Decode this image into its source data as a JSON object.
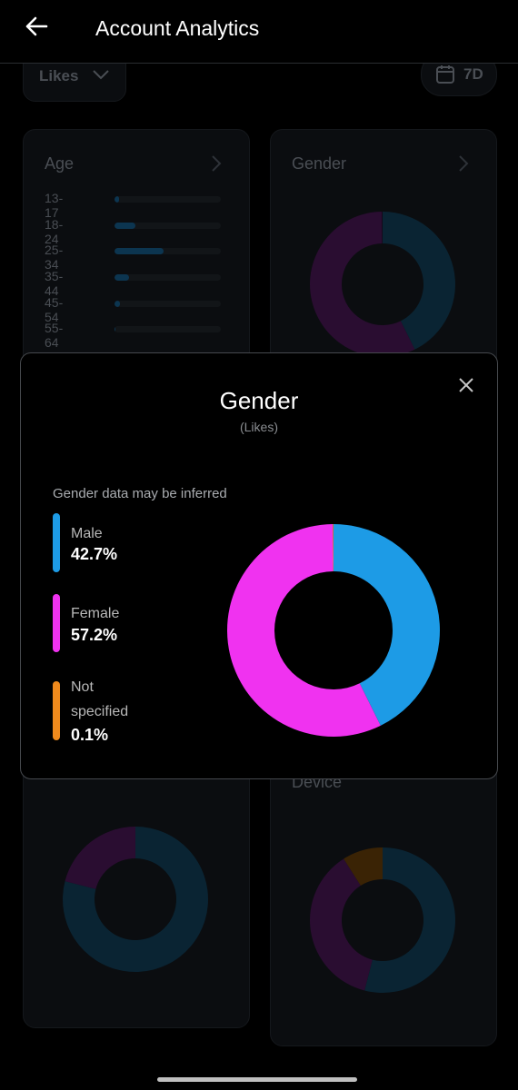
{
  "header": {
    "title": "Account Analytics"
  },
  "filters": {
    "metric": "Likes",
    "range": "7D"
  },
  "age_card": {
    "title": "Age",
    "categories": [
      "13-17",
      "18-24",
      "25-34",
      "35-44",
      "45-54",
      "55-64"
    ],
    "values": [
      4,
      20,
      46,
      14,
      5,
      1
    ],
    "xlim": [
      0,
      100
    ],
    "color": "#0c3550"
  },
  "gender_card": {
    "title": "Gender",
    "colors": [
      "#0a2433",
      "#2a0d31"
    ]
  },
  "lower_left_card": {
    "values": [
      79,
      21
    ],
    "colors": [
      "#0a2433",
      "#2a0d31"
    ]
  },
  "device_card": {
    "title": "Device",
    "values": [
      54,
      37,
      9
    ],
    "colors": [
      "#0a2433",
      "#2a0d31",
      "#3a2305"
    ]
  },
  "modal": {
    "title": "Gender",
    "subtitle": "(Likes)",
    "note": "Gender data may be inferred",
    "chart": {
      "type": "pie",
      "series": [
        {
          "name": "Male",
          "color": "#1d9be6",
          "values": [
            42.7
          ],
          "value_labels": [
            "42.7%"
          ]
        },
        {
          "name": "Female",
          "color": "#f032f0",
          "values": [
            57.2
          ],
          "value_labels": [
            "57.2%"
          ]
        },
        {
          "name": "Not specified",
          "color": "#f08a1c",
          "values": [
            0.1
          ],
          "value_labels": [
            "0.1%"
          ]
        }
      ]
    }
  }
}
